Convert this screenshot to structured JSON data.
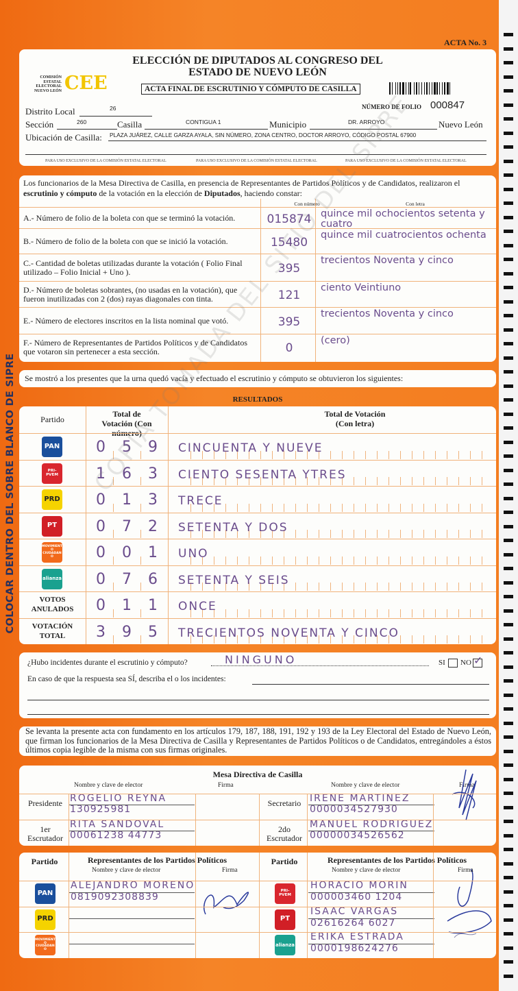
{
  "header": {
    "acta_no": "ACTA No. 3",
    "title_line1": "ELECCIÓN DE DIPUTADOS AL CONGRESO DEL",
    "title_line2": "ESTADO DE NUEVO LEÓN",
    "org_lines": [
      "COMISIÓN",
      "ESTATAL",
      "ELECTORAL",
      "NUEVO LEÓN"
    ],
    "org_logo": "CEE",
    "subtitle": "ACTA FINAL DE ESCRUTINIO Y CÓMPUTO DE CASILLA",
    "folio_label": "NÚMERO DE FOLIO",
    "folio": "000847",
    "distrito_label": "Distrito Local",
    "distrito": "26",
    "seccion_label": "Sección",
    "seccion": "260",
    "casilla_label": "Casilla",
    "casilla": "CONTIGUA 1",
    "municipio_label": "Municipio",
    "municipio": "DR. ARROYO",
    "estado": "Nuevo León",
    "ubicacion_label": "Ubicación de Casilla:",
    "ubicacion": "PLAZA JUÁREZ, CALLE GARZA AYALA, SIN NÚMERO, ZONA CENTRO, DOCTOR ARROYO, CÓDIGO POSTAL 67900",
    "exclusive_note": "PARA USO EXCLUSIVO DE LA COMISIÓN ESTATAL ELECTORAL"
  },
  "constancia": {
    "intro_a": "Los funcionarios de la Mesa Directiva de Casilla, en presencia de Representantes de Partidos Políticos  y de Candidatos, realizaron el ",
    "intro_b": "escrutinio y cómputo",
    "intro_c": " de la votación en la elección de ",
    "intro_d": "Diputados",
    "intro_e": ", haciendo constar:",
    "col_num": "Con número",
    "col_letra": "Con letra",
    "rows": [
      {
        "label": "A.- Número de folio de la boleta con que se terminó la votación.",
        "numero": "015874",
        "letra": "quince mil ochocientos setenta y cuatro"
      },
      {
        "label": "B.- Número de folio de la boleta con que se inició la votación.",
        "numero": "15480",
        "letra": "quince mil cuatrocientos ochenta"
      },
      {
        "label": "C.- Cantidad de boletas utilizadas durante la votación ( Folio Final utilizado – Folio Inicial + Uno ).",
        "numero": "395",
        "letra": "trecientos Noventa y cinco"
      },
      {
        "label": "D.- Número de boletas sobrantes, (no usadas en la votación), que fueron inutilizadas con 2 (dos) rayas diagonales con tinta.",
        "numero": "121",
        "letra": "ciento Veintiuno"
      },
      {
        "label": "E.- Número de electores inscritos en la lista nominal que votó.",
        "numero": "395",
        "letra": "trecientos Noventa y cinco"
      },
      {
        "label": "F.- Número de Representantes de Partidos Políticos y de Candidatos que votaron sin pertenecer a esta sección.",
        "numero": "0",
        "letra": "(cero)"
      }
    ]
  },
  "statement": "Se mostró a los presentes que la urna quedó vacía y efectuado el escrutinio y cómputo se obtuvieron los siguientes:",
  "resultados": {
    "title": "RESULTADOS",
    "col_partido": "Partido",
    "col_num": "Total de Votación (Con número)",
    "col_letra": "Total de Votación (Con letra)",
    "rows": [
      {
        "party": "PAN",
        "logo_color": "#1a4f9c",
        "numero": "059",
        "letra": "CINCUENTA Y NUEVE"
      },
      {
        "party": "PRI-PVEM",
        "logo_color": "#d9262e",
        "numero": "163",
        "letra": "CIENTO SESENTA YTRES"
      },
      {
        "party": "PRD",
        "logo_color": "#f5d300",
        "numero": "013",
        "letra": "TRECE"
      },
      {
        "party": "PT",
        "logo_color": "#d11f26",
        "numero": "072",
        "letra": "SETENTA Y DOS"
      },
      {
        "party": "MOVIMIENTO CIUDADANO",
        "logo_color": "#f26a1b",
        "numero": "001",
        "letra": "UNO"
      },
      {
        "party": "alianza",
        "logo_color": "#1aa18f",
        "numero": "076",
        "letra": "SETENTA Y SEIS"
      },
      {
        "party": "VOTOS ANULADOS",
        "logo_color": "",
        "numero": "011",
        "letra": "ONCE"
      },
      {
        "party": "VOTACIÓN TOTAL",
        "logo_color": "",
        "numero": "395",
        "letra": "TRECIENTOS NOVENTA Y CINCO"
      }
    ]
  },
  "incidentes": {
    "question": "¿Hubo incidentes durante el escrutinio y cómputo?",
    "answer": "NINGUNO",
    "si": "SI",
    "no": "NO",
    "checked": "NO",
    "describe": "En caso de que la respuesta sea SÍ, describa el o los incidentes:"
  },
  "legal": "Se levanta la presente acta con fundamento en los artículos 179, 187, 188, 191, 192 y 193 de la Ley Electoral del Estado de Nuevo León, que firman los funcionarios de la Mesa Directiva de Casilla y Representantes de  Partidos Políticos o de Candidatos, entregándoles a éstos últimos copia legible de la misma con sus firmas originales.",
  "mesa": {
    "title": "Mesa Directiva de Casilla",
    "col_nombre": "Nombre y clave de elector",
    "col_firma": "Firma",
    "members": [
      {
        "role": "Presidente",
        "name": "ROGELIO REYNA",
        "clave": "130925981"
      },
      {
        "role": "Secretario",
        "name": "IRENE MARTINEZ",
        "clave": "0000034527930"
      },
      {
        "role": "1er Escrutador",
        "name": "RITA SANDOVAL",
        "clave": "00061238 44773"
      },
      {
        "role": "2do Escrutador",
        "name": "MANUEL RODRIGUEZ",
        "clave": "00000034526562"
      }
    ]
  },
  "representantes": {
    "col_partido": "Partido",
    "col_title": "Representantes de los Partidos Políticos",
    "col_nombre": "Nombre y clave de elector",
    "col_firma": "Firma",
    "rows": [
      {
        "party": "PAN",
        "logo_color": "#1a4f9c",
        "name": "ALEJANDRO MORENO",
        "clave": "0819092308839"
      },
      {
        "party": "PRI-PVEM",
        "logo_color": "#d9262e",
        "name": "HORACIO MORIN",
        "clave": "000003460 1204"
      },
      {
        "party": "PRD",
        "logo_color": "#f5d300",
        "name": "",
        "clave": ""
      },
      {
        "party": "PT",
        "logo_color": "#d11f26",
        "name": "ISAAC VARGAS",
        "clave": "02616264 6027"
      },
      {
        "party": "MOVIMIENTO CIUDADANO",
        "logo_color": "#f26a1b",
        "name": "",
        "clave": ""
      },
      {
        "party": "alianza",
        "logo_color": "#1aa18f",
        "name": "ERIKA ESTRADA",
        "clave": "0000198624276"
      }
    ]
  },
  "side_text": "COLOCAR DENTRO DEL SOBRE BLANCO DE SIPRE",
  "watermark": "COPIA TOMADA DEL SITIO DEL SIPRE",
  "colors": {
    "background": "#f37a1f",
    "panel": "#fdfdfb",
    "handwriting": "#6a4c8c",
    "signature_ink": "#2a3a9c",
    "cee_yellow": "#f2c500"
  }
}
